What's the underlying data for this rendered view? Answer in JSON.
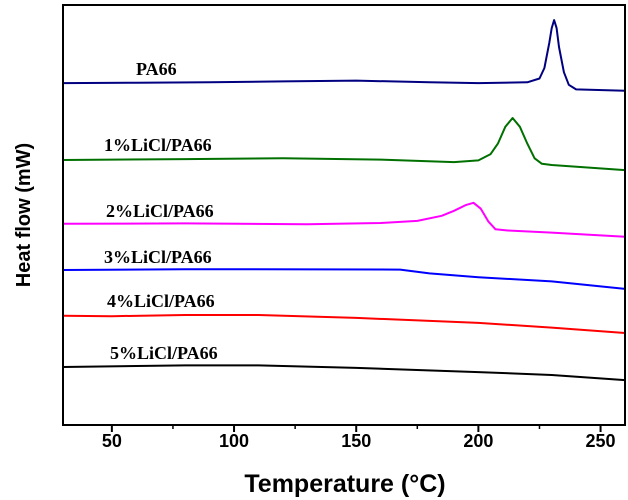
{
  "chart_data": {
    "type": "line",
    "title": "",
    "xlabel": "Temperature (°C)",
    "ylabel": "Heat flow (mW)",
    "xlim": [
      30,
      260
    ],
    "ylim": [
      0,
      100
    ],
    "xticks": [
      50,
      100,
      150,
      200,
      250
    ],
    "xtick_labels": [
      "50",
      "100",
      "150",
      "200",
      "250"
    ],
    "minor_xticks": [
      75,
      125,
      175,
      225
    ],
    "yticks": [],
    "grid": false,
    "legend": "inline labels above each curve",
    "series": [
      {
        "name": "PA66",
        "color": "#000080",
        "x": [
          30,
          60,
          90,
          120,
          150,
          180,
          200,
          220,
          225,
          227,
          229,
          230,
          231,
          232,
          233,
          235,
          237,
          240,
          260
        ],
        "y": [
          81.4,
          81.5,
          81.6,
          81.8,
          82.0,
          81.6,
          81.4,
          81.6,
          82.5,
          85,
          91,
          94.5,
          96.4,
          94.5,
          90,
          84,
          81,
          79.9,
          79.6
        ]
      },
      {
        "name": "1%LiCl/PA66",
        "color": "#007000",
        "x": [
          30,
          80,
          120,
          160,
          190,
          200,
          205,
          208,
          211,
          214,
          217,
          220,
          223,
          226,
          230,
          260
        ],
        "y": [
          63.1,
          63.3,
          63.5,
          63.2,
          62.6,
          63.0,
          64.5,
          67,
          71,
          73.1,
          71,
          67,
          63.5,
          62.2,
          61.9,
          60.7
        ]
      },
      {
        "name": "2%LiCl/PA66",
        "color": "#ff00ff",
        "x": [
          30,
          80,
          130,
          160,
          175,
          185,
          190,
          195,
          198,
          201,
          204,
          207,
          212,
          230,
          260
        ],
        "y": [
          47.9,
          48.0,
          47.8,
          48.1,
          48.6,
          49.8,
          51,
          52.4,
          52.9,
          51.5,
          48.5,
          46.6,
          46.3,
          45.8,
          44.8
        ]
      },
      {
        "name": "3%LiCl/PA66",
        "color": "#0000ff",
        "x": [
          30,
          80,
          100,
          168,
          180,
          200,
          230,
          260
        ],
        "y": [
          36.9,
          37.1,
          37.1,
          37.0,
          36.1,
          35.2,
          34.2,
          32.4
        ]
      },
      {
        "name": "4%LiCl/PA66",
        "color": "#ff0000",
        "x": [
          30,
          50,
          80,
          110,
          150,
          200,
          230,
          260
        ],
        "y": [
          26.0,
          25.9,
          26.2,
          26.2,
          25.5,
          24.3,
          23.2,
          21.9
        ]
      },
      {
        "name": "5%LiCl/PA66",
        "color": "#000000",
        "x": [
          30,
          80,
          110,
          150,
          200,
          230,
          260
        ],
        "y": [
          13.8,
          14.2,
          14.2,
          13.6,
          12.6,
          11.9,
          10.7
        ]
      }
    ]
  }
}
